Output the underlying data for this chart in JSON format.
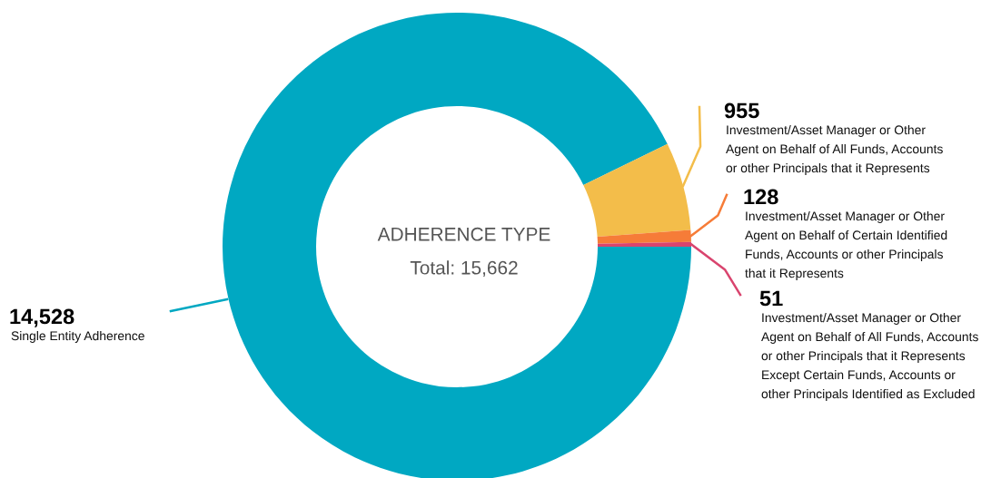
{
  "chart_data": {
    "type": "donut",
    "title": "ADHERENCE TYPE",
    "annotations": [
      "Total: 15,662"
    ],
    "categories": [
      "Single Entity Adherence",
      "Investment/Asset Manager or Other Agent on Behalf of All Funds, Accounts or other Principals that it Represents",
      "Investment/Asset Manager or Other Agent on Behalf of Certain Identified Funds, Accounts or other Principals that it Represents",
      "Investment/Asset Manager or Other Agent on Behalf of All Funds, Accounts or other Principals that it Represents Except Certain Funds, Accounts or other Principals Identified as Excluded"
    ],
    "values": [
      14528,
      955,
      128,
      51
    ],
    "value_labels": [
      "14,528",
      "955",
      "128",
      "51"
    ],
    "colors": [
      "#00a8c2",
      "#f3bd4a",
      "#f67c38",
      "#d9446e"
    ]
  }
}
